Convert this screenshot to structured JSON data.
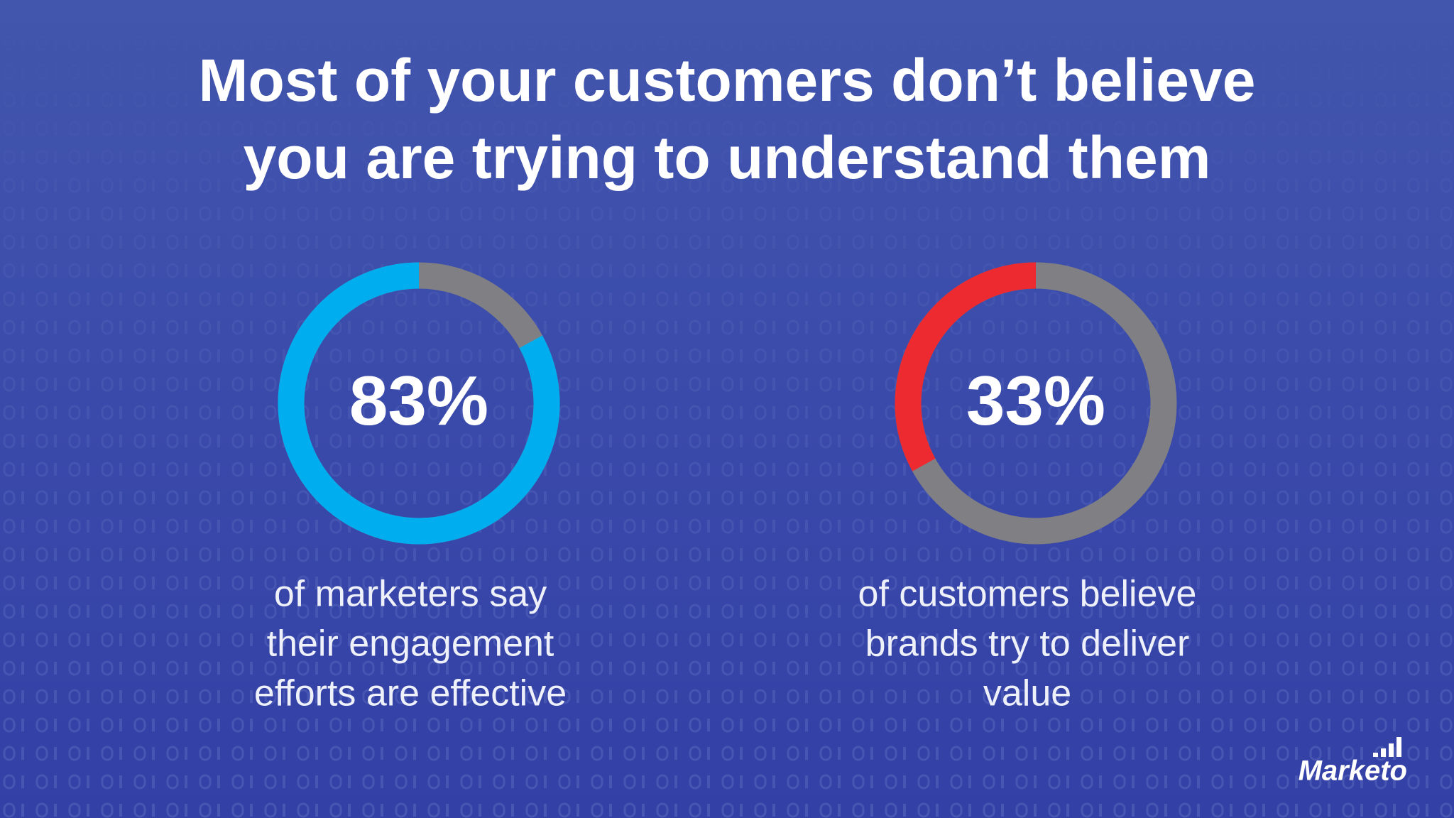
{
  "title": [
    "Most of your customers don’t believe",
    "you are trying to understand them"
  ],
  "logo": "Marketo",
  "chart_data": [
    {
      "type": "donut",
      "value": 83,
      "value_label": "83%",
      "ylim": [
        0,
        100
      ],
      "color": "#00aeef",
      "track_color": "#7f7f84",
      "caption": [
        "of marketers say",
        "their engagement",
        "efforts are effective"
      ]
    },
    {
      "type": "donut",
      "value": 33,
      "value_label": "33%",
      "ylim": [
        0,
        100
      ],
      "color": "#ec2a2f",
      "track_color": "#7f7f84",
      "caption": [
        "of customers believe",
        "brands try to deliver",
        "value"
      ]
    }
  ]
}
